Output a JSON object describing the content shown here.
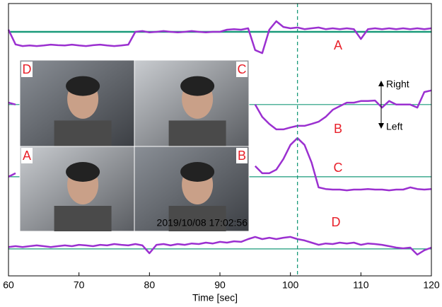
{
  "chart_data": {
    "type": "line",
    "xlabel": "Time [sec]",
    "xlim": [
      60,
      120
    ],
    "xticks": [
      60,
      70,
      80,
      90,
      100,
      110,
      120
    ],
    "ylim": [
      0,
      100
    ],
    "x": [
      60,
      61,
      62,
      63,
      64,
      65,
      66,
      67,
      68,
      69,
      70,
      71,
      72,
      73,
      74,
      75,
      76,
      77,
      78,
      79,
      80,
      81,
      82,
      83,
      84,
      85,
      86,
      87,
      88,
      89,
      90,
      91,
      92,
      93,
      94,
      95,
      96,
      97,
      98,
      99,
      100,
      101,
      102,
      103,
      104,
      105,
      106,
      107,
      108,
      109,
      110,
      111,
      112,
      113,
      114,
      115,
      116,
      117,
      118,
      119,
      120
    ],
    "series": [
      {
        "name": "A",
        "color": "#9b30d0",
        "values": [
          90.4,
          85,
          84.4,
          84.6,
          84.4,
          84.6,
          84.9,
          84.7,
          84.6,
          84.9,
          84.6,
          84.4,
          84.7,
          84.9,
          84.6,
          84.4,
          84.6,
          84.9,
          89.6,
          89.9,
          89.4,
          89.6,
          89.9,
          89.6,
          89.4,
          89.6,
          89.9,
          89.6,
          89.4,
          89.6,
          89.6,
          90.4,
          90.6,
          90.4,
          90.9,
          82.9,
          81.8,
          90.4,
          93.5,
          91.4,
          90.9,
          91.2,
          90.6,
          90.9,
          91.2,
          90.6,
          90.9,
          90.6,
          90.9,
          90.6,
          87.0,
          90.6,
          90.9,
          90.6,
          90.9,
          90.6,
          90.9,
          90.6,
          90.9,
          90.6,
          90.9
        ]
      },
      {
        "name": "B",
        "color": "#9b30d0",
        "values": [
          63.6,
          62.9,
          null,
          null,
          null,
          null,
          null,
          null,
          null,
          null,
          null,
          null,
          null,
          null,
          null,
          null,
          null,
          null,
          null,
          null,
          null,
          null,
          null,
          null,
          null,
          null,
          null,
          null,
          null,
          null,
          null,
          null,
          null,
          null,
          null,
          62.9,
          58.4,
          55.8,
          53.8,
          53.8,
          54.5,
          55.1,
          55.1,
          55.8,
          56.6,
          58.4,
          61.0,
          62.3,
          63.6,
          63.6,
          64.2,
          64.2,
          64.4,
          61.8,
          64.2,
          62.9,
          62.9,
          62.9,
          61.8,
          67.5,
          68.1
        ]
      },
      {
        "name": "C",
        "color": "#9b30d0",
        "values": [
          36.4,
          37.7,
          null,
          null,
          null,
          null,
          null,
          null,
          null,
          null,
          null,
          null,
          null,
          null,
          null,
          null,
          null,
          null,
          null,
          null,
          null,
          null,
          null,
          null,
          null,
          null,
          null,
          null,
          null,
          null,
          null,
          null,
          null,
          null,
          null,
          40.3,
          37.7,
          37.7,
          39.0,
          42.9,
          48.1,
          50.6,
          48.1,
          41.6,
          32.5,
          31.9,
          31.7,
          31.7,
          31.4,
          31.7,
          31.7,
          31.9,
          31.7,
          31.7,
          31.4,
          31.7,
          31.7,
          32.5,
          31.9,
          31.7,
          31.9
        ]
      },
      {
        "name": "D",
        "color": "#9b30d0",
        "values": [
          10.6,
          10.9,
          10.6,
          10.9,
          11.2,
          10.9,
          10.6,
          10.9,
          11.2,
          10.9,
          11.4,
          11.2,
          10.9,
          11.4,
          11.2,
          11.7,
          11.4,
          11.2,
          11.7,
          11.2,
          8.3,
          11.4,
          11.7,
          11.2,
          11.7,
          11.4,
          11.9,
          11.7,
          12.2,
          11.9,
          12.5,
          12.2,
          12.7,
          12.5,
          13.5,
          14.3,
          13.5,
          14.0,
          13.5,
          14.0,
          14.3,
          13.5,
          13.0,
          12.2,
          11.4,
          11.9,
          11.7,
          12.2,
          11.9,
          12.2,
          11.4,
          11.9,
          11.7,
          11.4,
          10.9,
          10.4,
          10.1,
          10.4,
          7.8,
          9.4,
          10.4
        ]
      }
    ],
    "baselines": [
      89.6,
      62.9,
      36.4,
      9.9
    ],
    "baseline_color": "#1a9a7a",
    "vline": 101,
    "vline_color": "#1a9a7a",
    "direction_labels": [
      "Right",
      "Left"
    ],
    "inset": {
      "labels": [
        "D",
        "C",
        "A",
        "B"
      ],
      "timestamp": "2019/10/08 17:02:56"
    }
  }
}
